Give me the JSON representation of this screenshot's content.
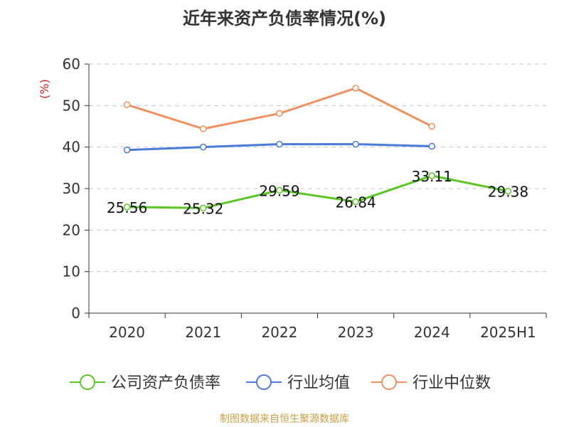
{
  "title": "近年来资产负债率情况(%)",
  "source": "制图数据来自恒生聚源数据库",
  "chart_data": {
    "type": "line",
    "title": "近年来资产负债率情况(%)",
    "ylabel": "(%)",
    "xlabel": "",
    "ylim": [
      0,
      60
    ],
    "yticks": [
      "0",
      "10",
      "20",
      "30",
      "40",
      "50",
      "60"
    ],
    "categories": [
      "2020",
      "2021",
      "2022",
      "2023",
      "2024",
      "2025H1"
    ],
    "grid": true,
    "legend": "bottom",
    "series": [
      {
        "name": "公司资产负债率",
        "color": "#5ac725",
        "values": [
          25.56,
          25.32,
          29.59,
          26.84,
          33.11,
          29.38
        ],
        "labels": [
          "25.56",
          "25.32",
          "29.59",
          "26.84",
          "33.11",
          "29.38"
        ]
      },
      {
        "name": "行业均值",
        "color": "#4a7bd9",
        "values": [
          39.3,
          40.0,
          40.7,
          40.7,
          40.2,
          null
        ]
      },
      {
        "name": "行业中位数",
        "color": "#f39060",
        "values": [
          50.2,
          44.4,
          48.1,
          54.2,
          45.0,
          null
        ]
      }
    ]
  }
}
